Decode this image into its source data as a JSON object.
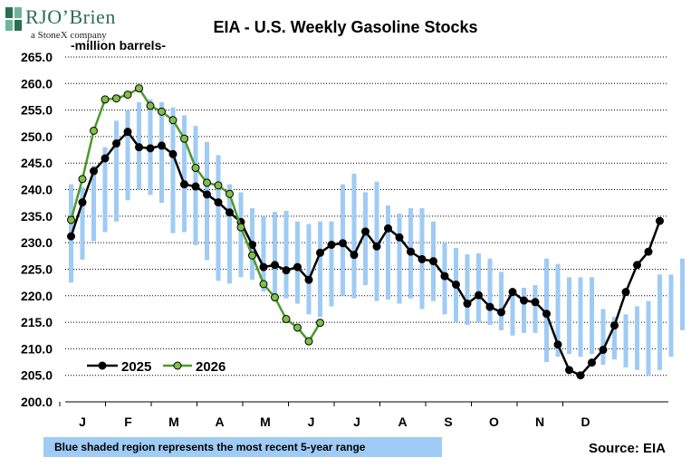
{
  "logo": {
    "name": "RJO’Brien",
    "sub": "a StoneX company"
  },
  "chart_data": {
    "type": "line",
    "title": "EIA - U.S. Weekly Gasoline Stocks",
    "ylabel": "-million barrels-",
    "ylim": [
      200,
      265
    ],
    "yticks": [
      "265.0",
      "260.0",
      "255.0",
      "250.0",
      "245.0",
      "240.0",
      "235.0",
      "230.0",
      "225.0",
      "220.0",
      "215.0",
      "210.0",
      "205.0",
      "200.0"
    ],
    "yticks_values": [
      265,
      260,
      255,
      250,
      245,
      240,
      235,
      230,
      225,
      220,
      215,
      210,
      205,
      200
    ],
    "xticks": [
      "J",
      "F",
      "M",
      "A",
      "M",
      "J",
      "J",
      "A",
      "S",
      "O",
      "N",
      "D"
    ],
    "grid": "horizontal dotted",
    "legend_position": "bottom-left",
    "range_band": {
      "low": [
        222.5,
        226.8,
        230.3,
        232.0,
        234.0,
        238.0,
        240.0,
        239.0,
        237.5,
        231.8,
        232.0,
        229.5,
        226.7,
        222.8,
        222.3,
        223.5,
        223.0,
        220.8,
        220.0,
        219.5,
        218.5,
        216.5,
        216.0,
        218.0,
        220.0,
        219.5,
        222.0,
        219.0,
        219.3,
        218.5,
        219.5,
        217.5,
        219.0,
        216.5,
        215.0,
        214.5,
        215.0,
        214.5,
        213.5,
        212.5,
        213.0,
        213.0,
        207.5,
        208.5,
        209.0,
        208.5,
        209.0,
        207.0,
        208.0,
        206.5,
        206.0,
        205.0,
        206.0,
        208.5,
        213.5,
        215.5,
        220.5,
        222.0,
        223.0,
        222.5
      ],
      "high": [
        241.0,
        240.5,
        244.5,
        248.0,
        253.0,
        255.0,
        256.5,
        257.0,
        256.5,
        255.5,
        254.0,
        252.0,
        249.0,
        246.5,
        241.0,
        239.5,
        236.5,
        235.0,
        235.8,
        236.0,
        234.0,
        233.5,
        234.0,
        234.0,
        241.0,
        243.0,
        239.5,
        241.5,
        237.0,
        235.5,
        236.5,
        236.5,
        234.0,
        230.0,
        229.0,
        227.8,
        228.0,
        227.0,
        224.5,
        221.5,
        221.5,
        222.0,
        227.0,
        226.0,
        223.5,
        223.5,
        223.5,
        217.5,
        216.0,
        216.5,
        218.0,
        219.0,
        224.0,
        224.0,
        227.0,
        226.0,
        226.5,
        230.0,
        233.0,
        237.0
      ]
    },
    "series": [
      {
        "name": "2025",
        "color": "#000000",
        "values": [
          231.2,
          237.6,
          243.5,
          245.9,
          248.7,
          250.9,
          248.0,
          247.8,
          248.3,
          246.7,
          241.0,
          240.6,
          239.1,
          237.6,
          235.7,
          233.9,
          229.6,
          225.4,
          225.8,
          224.8,
          225.4,
          223.0,
          228.1,
          229.6,
          229.9,
          227.7,
          232.1,
          229.3,
          232.7,
          231.0,
          228.3,
          226.9,
          226.5,
          223.7,
          222.1,
          218.5,
          220.1,
          217.9,
          216.9,
          220.7,
          219.1,
          218.8,
          216.6,
          210.8,
          206.0,
          205.0,
          207.4,
          209.8,
          214.4,
          220.7,
          225.8,
          228.3,
          234.1
        ]
      },
      {
        "name": "2026",
        "color": "#4c9a2a",
        "values": [
          234.3,
          242.0,
          251.1,
          257.0,
          257.2,
          257.9,
          259.1,
          255.8,
          254.7,
          253.1,
          249.6,
          244.1,
          241.3,
          240.8,
          239.2,
          232.9,
          227.6,
          222.2,
          219.7,
          215.6,
          214.0,
          211.4,
          214.9
        ]
      }
    ]
  },
  "legend": {
    "s1": "2025",
    "s2": "2026"
  },
  "footnote": "Blue shaded region represents the most recent 5-year range",
  "source": "Source:  EIA",
  "colors": {
    "band": "#9fcbf5",
    "s2025": "#000000",
    "s2026_line": "#4c9a2a",
    "s2026_marker": "#7fbf4a"
  }
}
